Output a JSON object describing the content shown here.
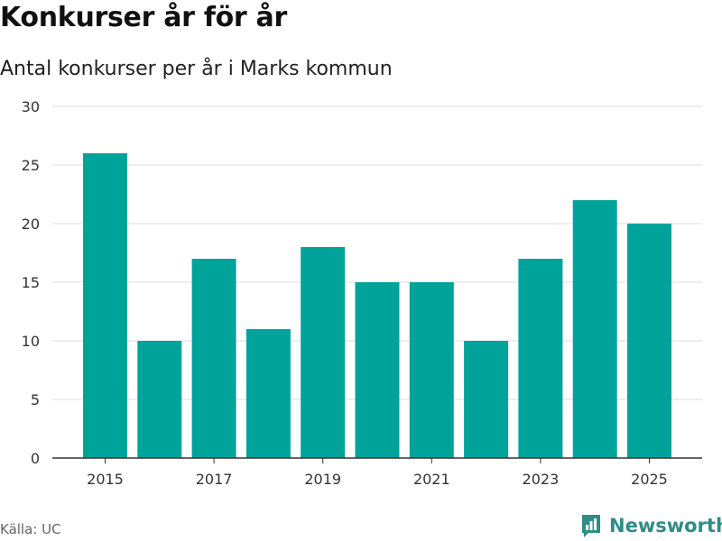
{
  "header": {
    "title": "Konkurser år för år",
    "subtitle": "Antal konkurser per år i Marks kommun"
  },
  "footer": {
    "source": "Källa: UC",
    "brand": "Newsworthy",
    "brand_icon": "newsworthy-logo-icon"
  },
  "colors": {
    "bar": "#00A39A",
    "grid": "#dddddd",
    "axis": "#333333",
    "brand": "#2f8c86"
  },
  "chart_data": {
    "type": "bar",
    "title": "Konkurser år för år",
    "subtitle": "Antal konkurser per år i Marks kommun",
    "xlabel": "",
    "ylabel": "",
    "categories": [
      "2015",
      "2016",
      "2017",
      "2018",
      "2019",
      "2020",
      "2021",
      "2022",
      "2023",
      "2024",
      "2025"
    ],
    "values": [
      26,
      10,
      17,
      11,
      18,
      15,
      15,
      10,
      17,
      22,
      20
    ],
    "x_tick_labels": [
      "2015",
      "2017",
      "2019",
      "2021",
      "2023",
      "2025"
    ],
    "y_ticks": [
      0,
      5,
      10,
      15,
      20,
      25,
      30
    ],
    "ylim": [
      0,
      30
    ],
    "grid": true,
    "legend": "none"
  }
}
